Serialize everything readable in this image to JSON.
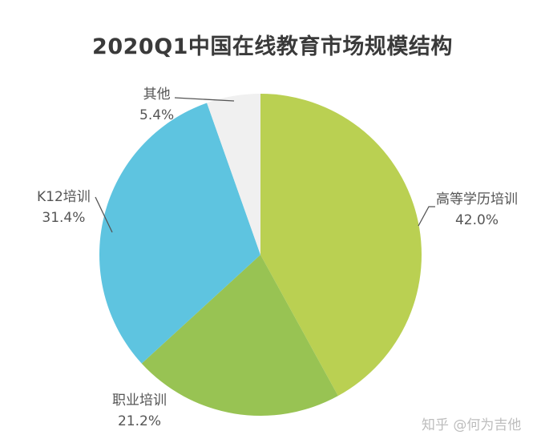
{
  "title": "2020Q1中国在线教育市场规模结构",
  "chart_data": {
    "type": "pie",
    "title": "2020Q1中国在线教育市场规模结构",
    "start_angle": "12 o'clock, clockwise",
    "categories": [
      "高等学历培训",
      "职业培训",
      "K12培训",
      "其他"
    ],
    "values": [
      42.0,
      21.2,
      31.4,
      5.4
    ],
    "unit": "%",
    "colors": [
      "#bad052",
      "#98c353",
      "#5ec4e0",
      "#f0f0f0"
    ],
    "labels": [
      {
        "name": "高等学历培训",
        "pct": "42.0%"
      },
      {
        "name": "职业培训",
        "pct": "21.2%"
      },
      {
        "name": "K12培训",
        "pct": "31.4%"
      },
      {
        "name": "其他",
        "pct": "5.4%"
      }
    ],
    "legend": "none (direct labels)"
  },
  "watermark": "知乎 @何为吉他"
}
